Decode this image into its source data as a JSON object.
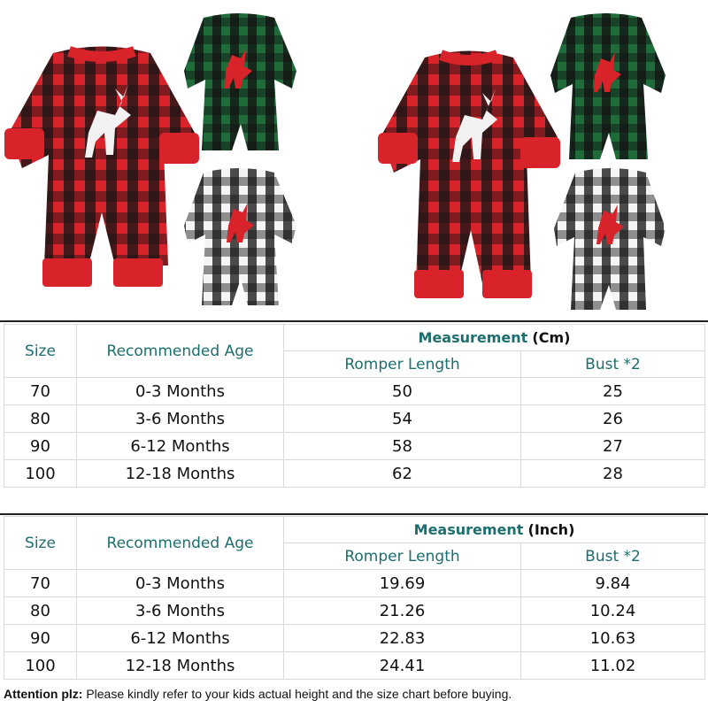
{
  "tables": [
    {
      "headers": {
        "size": "Size",
        "age": "Recommended Age",
        "measurement_label": "Measurement",
        "unit": "(Cm)",
        "romper_length": "Romper Length",
        "bust": "Bust *2"
      },
      "rows": [
        {
          "size": "70",
          "age": "0-3 Months",
          "length": "50",
          "bust": "25"
        },
        {
          "size": "80",
          "age": "3-6 Months",
          "length": "54",
          "bust": "26"
        },
        {
          "size": "90",
          "age": "6-12 Months",
          "length": "58",
          "bust": "27"
        },
        {
          "size": "100",
          "age": "12-18 Months",
          "length": "62",
          "bust": "28"
        }
      ]
    },
    {
      "headers": {
        "size": "Size",
        "age": "Recommended Age",
        "measurement_label": "Measurement",
        "unit": "(Inch)",
        "romper_length": "Romper Length",
        "bust": "Bust *2"
      },
      "rows": [
        {
          "size": "70",
          "age": "0-3 Months",
          "length": "19.69",
          "bust": "9.84"
        },
        {
          "size": "80",
          "age": "3-6 Months",
          "length": "21.26",
          "bust": "10.24"
        },
        {
          "size": "90",
          "age": "6-12 Months",
          "length": "22.83",
          "bust": "10.63"
        },
        {
          "size": "100",
          "age": "12-18 Months",
          "length": "24.41",
          "bust": "11.02"
        }
      ]
    }
  ],
  "attention": {
    "label": "Attention plz:",
    "text": "Please kindly refer to your kids actual height and the size chart before buying."
  },
  "colors": {
    "heading_teal": "#1d6e6f",
    "plaid_red": "#d8232a",
    "plaid_green": "#1f6b3a",
    "plaid_black": "#141414",
    "plaid_white": "#f4f4f4"
  }
}
